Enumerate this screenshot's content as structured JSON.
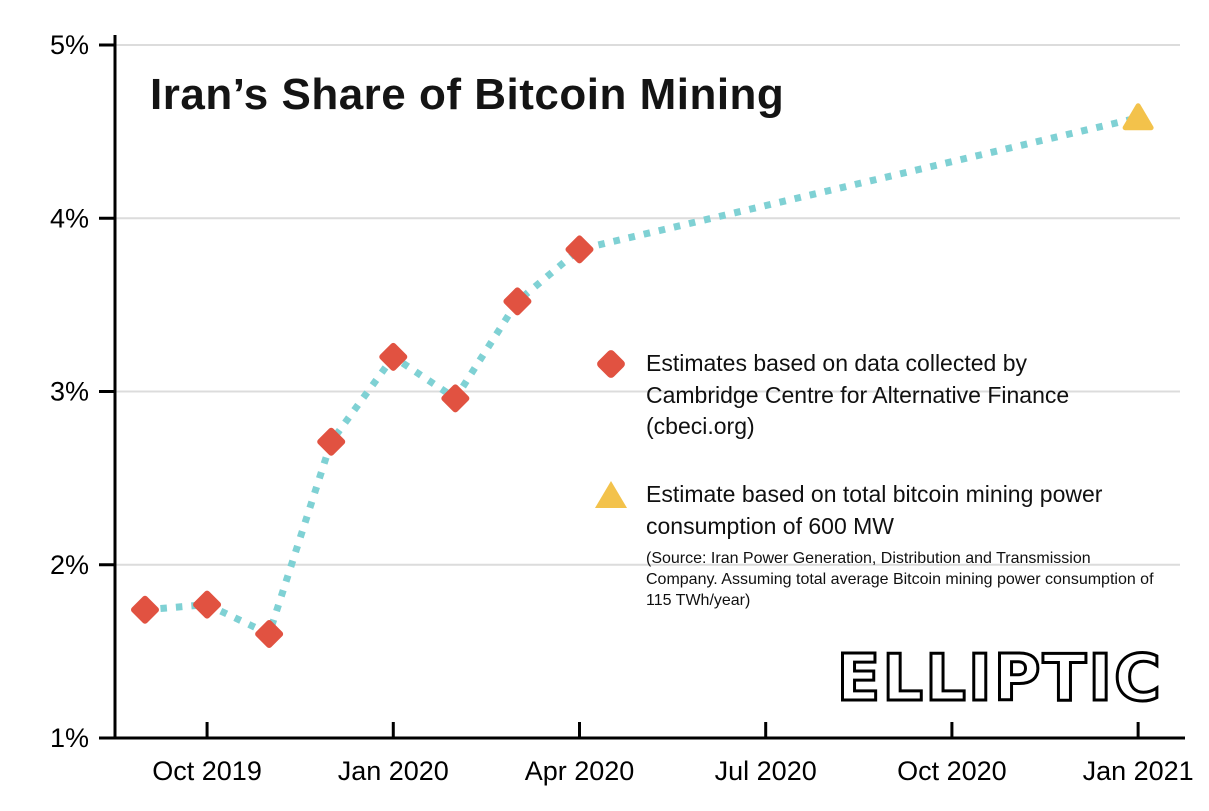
{
  "title": "Iran’s Share of Bitcoin Mining",
  "logo": {
    "text": "ELLIPTIC"
  },
  "legend": {
    "items": [
      {
        "marker": "diamond",
        "color": "#e15241",
        "label": "Estimates based on data collected by Cambridge Centre for Alternative Finance (cbeci.org)"
      },
      {
        "marker": "triangle",
        "color": "#f3c24b",
        "label": "Estimate based on total bitcoin mining power consumption of 600 MW",
        "note": "(Source: Iran Power Generation, Distribution and Transmission Company. Assuming total average Bitcoin mining power consumption of 115 TWh/year)"
      }
    ]
  },
  "chart_data": {
    "type": "line",
    "title": "Iran’s Share of Bitcoin Mining",
    "xlabel": "",
    "ylabel": "",
    "grid": true,
    "legend_position": "center-right",
    "ylim": [
      1,
      5
    ],
    "yticks": [
      {
        "value": 1,
        "label": "1%"
      },
      {
        "value": 2,
        "label": "2%"
      },
      {
        "value": 3,
        "label": "3%"
      },
      {
        "value": 4,
        "label": "4%"
      },
      {
        "value": 5,
        "label": "5%"
      }
    ],
    "xticks": [
      {
        "month_index": 1,
        "label": "Oct 2019"
      },
      {
        "month_index": 4,
        "label": "Jan 2020"
      },
      {
        "month_index": 7,
        "label": "Apr 2020"
      },
      {
        "month_index": 10,
        "label": "Jul 2020"
      },
      {
        "month_index": 13,
        "label": "Oct 2020"
      },
      {
        "month_index": 16,
        "label": "Jan 2021"
      }
    ],
    "line": {
      "color": "#7fd1d4",
      "style": "dotted"
    },
    "series": [
      {
        "name": "Estimates based on data collected by Cambridge Centre for Alternative Finance (cbeci.org)",
        "marker": "diamond",
        "color": "#e15241",
        "points": [
          {
            "date": "Sep 2019",
            "month_index": 0,
            "value": 1.74
          },
          {
            "date": "Oct 2019",
            "month_index": 1,
            "value": 1.77
          },
          {
            "date": "Nov 2019",
            "month_index": 2,
            "value": 1.6
          },
          {
            "date": "Dec 2019",
            "month_index": 3,
            "value": 2.71
          },
          {
            "date": "Jan 2020",
            "month_index": 4,
            "value": 3.2
          },
          {
            "date": "Feb 2020",
            "month_index": 5,
            "value": 2.96
          },
          {
            "date": "Mar 2020",
            "month_index": 6,
            "value": 3.52
          },
          {
            "date": "Apr 2020",
            "month_index": 7,
            "value": 3.82
          }
        ]
      },
      {
        "name": "Estimate based on total bitcoin mining power consumption of 600 MW",
        "marker": "triangle",
        "color": "#f3c24b",
        "points": [
          {
            "date": "Jan 2021",
            "month_index": 16,
            "value": 4.58
          }
        ]
      }
    ]
  }
}
